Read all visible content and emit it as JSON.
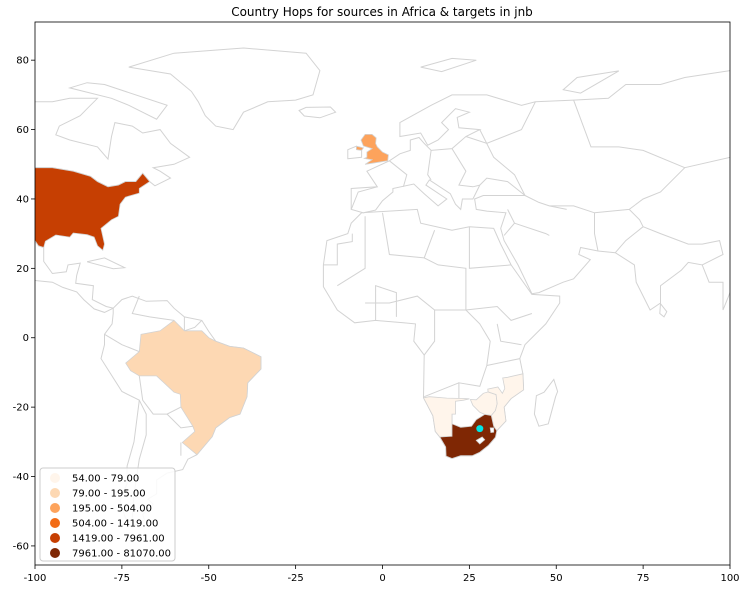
{
  "chart_data": {
    "type": "choropleth",
    "title": "Country Hops for sources in Africa & targets in jnb",
    "xlim": [
      -100,
      100
    ],
    "ylim": [
      -65.5,
      91
    ],
    "xticks": [
      -100,
      -75,
      -50,
      -25,
      0,
      25,
      50,
      75,
      100
    ],
    "yticks": [
      -60,
      -40,
      -20,
      0,
      20,
      40,
      60,
      80
    ],
    "legend_placement": "lower-left",
    "border_color": "#d3d3d3",
    "classes": [
      {
        "label": "54.00 - 79.00",
        "color": "#fff5eb"
      },
      {
        "label": "79.00 - 195.00",
        "color": "#fdd8b3"
      },
      {
        "label": "195.00 - 504.00",
        "color": "#fda35c"
      },
      {
        "label": "504.00 - 1419.00",
        "color": "#f26b15"
      },
      {
        "label": "1419.00 - 7961.00",
        "color": "#c63f02"
      },
      {
        "label": "7961.00 - 81070.00",
        "color": "#7f2704"
      }
    ],
    "countries": [
      {
        "name": "Namibia",
        "class": 0
      },
      {
        "name": "Zimbabwe",
        "class": 0
      },
      {
        "name": "Mozambique",
        "class": 0
      },
      {
        "name": "Brazil",
        "class": 1
      },
      {
        "name": "United Kingdom",
        "class": 2
      },
      {
        "name": "United States",
        "class": 4
      },
      {
        "name": "South Africa",
        "class": 5
      }
    ],
    "target_point": {
      "lon": 28.0,
      "lat": -26.2,
      "color": "#00e5e5"
    }
  }
}
